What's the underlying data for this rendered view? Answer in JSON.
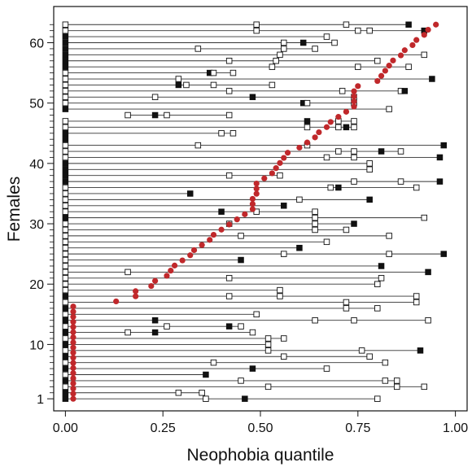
{
  "chart_data": {
    "type": "scatter",
    "title": "",
    "xlabel": "Neophobia quantile",
    "ylabel": "Females",
    "xlim": [
      -0.03,
      1.03
    ],
    "ylim": [
      -1,
      66
    ],
    "x_ticks": [
      0.0,
      0.25,
      0.5,
      0.75,
      1.0
    ],
    "x_tick_labels": [
      "0.00",
      "0.25",
      "0.50",
      "0.75",
      "1.00"
    ],
    "y_ticks": [
      1,
      10,
      20,
      30,
      40,
      50,
      60
    ],
    "y_tick_labels": [
      "1",
      "10",
      "20",
      "30",
      "40",
      "50",
      "60"
    ],
    "grid": false,
    "legend": "none",
    "colors": {
      "red_point": "#c0282b",
      "filled_square": "#111111",
      "open_square": "#ffffff",
      "line": "#333333"
    },
    "red_points": [
      0.02,
      0.02,
      0.02,
      0.02,
      0.02,
      0.02,
      0.02,
      0.02,
      0.02,
      0.02,
      0.02,
      0.02,
      0.02,
      0.02,
      0.02,
      0.02,
      0.02,
      0.02,
      0.02,
      0.13,
      0.18,
      0.18,
      0.22,
      0.23,
      0.26,
      0.27,
      0.28,
      0.3,
      0.32,
      0.33,
      0.35,
      0.37,
      0.38,
      0.4,
      0.42,
      0.44,
      0.46,
      0.48,
      0.48,
      0.48,
      0.49,
      0.49,
      0.49,
      0.51,
      0.53,
      0.54,
      0.55,
      0.56,
      0.57,
      0.6,
      0.62,
      0.64,
      0.65,
      0.67,
      0.68,
      0.7,
      0.72,
      0.74,
      0.74,
      0.74,
      0.74,
      0.75,
      0.8,
      0.81,
      0.82,
      0.83,
      0.84,
      0.86,
      0.87,
      0.89,
      0.9,
      0.92,
      0.93,
      0.95
    ],
    "females": [
      {
        "id": 1,
        "squares": [
          [
            0.0,
            "f"
          ],
          [
            0.36,
            "o"
          ],
          [
            0.46,
            "f"
          ],
          [
            0.8,
            "o"
          ]
        ]
      },
      {
        "id": 2,
        "squares": [
          [
            0.0,
            "f"
          ],
          [
            0.29,
            "o"
          ],
          [
            0.35,
            "o"
          ]
        ]
      },
      {
        "id": 3,
        "squares": [
          [
            0.0,
            "o"
          ],
          [
            0.52,
            "o"
          ],
          [
            0.85,
            "o"
          ],
          [
            0.92,
            "o"
          ]
        ]
      },
      {
        "id": 4,
        "squares": [
          [
            0.0,
            "f"
          ],
          [
            0.45,
            "o"
          ],
          [
            0.82,
            "o"
          ],
          [
            0.85,
            "o"
          ]
        ]
      },
      {
        "id": 5,
        "squares": [
          [
            0.0,
            "o"
          ],
          [
            0.36,
            "f"
          ]
        ]
      },
      {
        "id": 6,
        "squares": [
          [
            0.0,
            "f"
          ],
          [
            0.48,
            "f"
          ],
          [
            0.67,
            "o"
          ]
        ]
      },
      {
        "id": 7,
        "squares": [
          [
            0.0,
            "o"
          ],
          [
            0.38,
            "o"
          ],
          [
            0.82,
            "o"
          ]
        ]
      },
      {
        "id": 8,
        "squares": [
          [
            0.0,
            "f"
          ],
          [
            0.56,
            "o"
          ],
          [
            0.78,
            "o"
          ]
        ]
      },
      {
        "id": 9,
        "squares": [
          [
            0.0,
            "o"
          ],
          [
            0.52,
            "o"
          ],
          [
            0.76,
            "o"
          ],
          [
            0.91,
            "f"
          ]
        ]
      },
      {
        "id": 10,
        "squares": [
          [
            0.0,
            "f"
          ],
          [
            0.52,
            "o"
          ]
        ]
      },
      {
        "id": 11,
        "squares": [
          [
            0.0,
            "o"
          ],
          [
            0.52,
            "o"
          ],
          [
            0.56,
            "o"
          ]
        ]
      },
      {
        "id": 12,
        "squares": [
          [
            0.0,
            "f"
          ],
          [
            0.16,
            "o"
          ],
          [
            0.23,
            "f"
          ],
          [
            0.48,
            "o"
          ]
        ]
      },
      {
        "id": 13,
        "squares": [
          [
            0.0,
            "o"
          ],
          [
            0.26,
            "o"
          ],
          [
            0.42,
            "f"
          ],
          [
            0.45,
            "o"
          ]
        ]
      },
      {
        "id": 14,
        "squares": [
          [
            0.0,
            "f"
          ],
          [
            0.23,
            "f"
          ],
          [
            0.64,
            "o"
          ],
          [
            0.74,
            "o"
          ],
          [
            0.93,
            "o"
          ]
        ]
      },
      {
        "id": 15,
        "squares": [
          [
            0.0,
            "o"
          ],
          [
            0.49,
            "o"
          ]
        ]
      },
      {
        "id": 16,
        "squares": [
          [
            0.0,
            "f"
          ],
          [
            0.72,
            "o"
          ],
          [
            0.8,
            "o"
          ]
        ]
      },
      {
        "id": 17,
        "squares": [
          [
            0.0,
            "o"
          ],
          [
            0.72,
            "o"
          ],
          [
            0.9,
            "o"
          ]
        ]
      },
      {
        "id": 18,
        "squares": [
          [
            0.0,
            "f"
          ],
          [
            0.42,
            "o"
          ],
          [
            0.55,
            "o"
          ],
          [
            0.9,
            "o"
          ]
        ]
      },
      {
        "id": 19,
        "squares": [
          [
            0.0,
            "o"
          ],
          [
            0.55,
            "o"
          ]
        ]
      },
      {
        "id": 20,
        "squares": [
          [
            0.0,
            "o"
          ],
          [
            0.8,
            "o"
          ]
        ]
      },
      {
        "id": 21,
        "squares": [
          [
            0.0,
            "o"
          ],
          [
            0.42,
            "o"
          ],
          [
            0.81,
            "o"
          ]
        ]
      },
      {
        "id": 22,
        "squares": [
          [
            0.0,
            "o"
          ],
          [
            0.16,
            "o"
          ],
          [
            0.93,
            "f"
          ]
        ]
      },
      {
        "id": 23,
        "squares": [
          [
            0.0,
            "o"
          ],
          [
            0.81,
            "f"
          ]
        ]
      },
      {
        "id": 24,
        "squares": [
          [
            0.0,
            "o"
          ],
          [
            0.45,
            "f"
          ]
        ]
      },
      {
        "id": 25,
        "squares": [
          [
            0.0,
            "o"
          ],
          [
            0.56,
            "o"
          ],
          [
            0.83,
            "o"
          ],
          [
            0.97,
            "f"
          ]
        ]
      },
      {
        "id": 26,
        "squares": [
          [
            0.0,
            "o"
          ],
          [
            0.6,
            "f"
          ]
        ]
      },
      {
        "id": 27,
        "squares": [
          [
            0.0,
            "o"
          ],
          [
            0.67,
            "o"
          ]
        ]
      },
      {
        "id": 28,
        "squares": [
          [
            0.0,
            "o"
          ],
          [
            0.45,
            "o"
          ],
          [
            0.83,
            "o"
          ]
        ]
      },
      {
        "id": 29,
        "squares": [
          [
            0.0,
            "o"
          ],
          [
            0.64,
            "o"
          ],
          [
            0.72,
            "o"
          ]
        ]
      },
      {
        "id": 30,
        "squares": [
          [
            0.0,
            "o"
          ],
          [
            0.42,
            "o"
          ],
          [
            0.64,
            "o"
          ],
          [
            0.74,
            "f"
          ]
        ]
      },
      {
        "id": 31,
        "squares": [
          [
            0.0,
            "f"
          ],
          [
            0.64,
            "o"
          ],
          [
            0.92,
            "o"
          ]
        ]
      },
      {
        "id": 32,
        "squares": [
          [
            0.0,
            "o"
          ],
          [
            0.4,
            "f"
          ],
          [
            0.49,
            "o"
          ],
          [
            0.64,
            "o"
          ]
        ]
      },
      {
        "id": 33,
        "squares": [
          [
            0.0,
            "o"
          ],
          [
            0.56,
            "f"
          ]
        ]
      },
      {
        "id": 34,
        "squares": [
          [
            0.0,
            "o"
          ],
          [
            0.6,
            "o"
          ],
          [
            0.78,
            "f"
          ]
        ]
      },
      {
        "id": 35,
        "squares": [
          [
            0.0,
            "o"
          ],
          [
            0.32,
            "f"
          ]
        ]
      },
      {
        "id": 36,
        "squares": [
          [
            0.0,
            "o"
          ],
          [
            0.68,
            "o"
          ],
          [
            0.7,
            "f"
          ],
          [
            0.9,
            "o"
          ]
        ]
      },
      {
        "id": 37,
        "squares": [
          [
            0.0,
            "f"
          ],
          [
            0.74,
            "o"
          ],
          [
            0.86,
            "o"
          ],
          [
            0.96,
            "f"
          ]
        ]
      },
      {
        "id": 38,
        "squares": [
          [
            0.0,
            "f"
          ],
          [
            0.42,
            "o"
          ],
          [
            0.55,
            "o"
          ]
        ]
      },
      {
        "id": 39,
        "squares": [
          [
            0.0,
            "f"
          ],
          [
            0.78,
            "o"
          ]
        ]
      },
      {
        "id": 40,
        "squares": [
          [
            0.0,
            "f"
          ],
          [
            0.78,
            "o"
          ]
        ]
      },
      {
        "id": 41,
        "squares": [
          [
            0.0,
            "o"
          ],
          [
            0.67,
            "o"
          ],
          [
            0.74,
            "o"
          ],
          [
            0.96,
            "f"
          ]
        ]
      },
      {
        "id": 42,
        "squares": [
          [
            0.0,
            "o"
          ],
          [
            0.7,
            "o"
          ],
          [
            0.74,
            "o"
          ],
          [
            0.81,
            "f"
          ],
          [
            0.86,
            "o"
          ]
        ]
      },
      {
        "id": 43,
        "squares": [
          [
            0.0,
            "o"
          ],
          [
            0.34,
            "o"
          ],
          [
            0.62,
            "o"
          ],
          [
            0.97,
            "f"
          ]
        ]
      },
      {
        "id": 44,
        "squares": [
          [
            0.0,
            "f"
          ]
        ]
      },
      {
        "id": 45,
        "squares": [
          [
            0.0,
            "f"
          ],
          [
            0.4,
            "o"
          ],
          [
            0.43,
            "o"
          ]
        ]
      },
      {
        "id": 46,
        "squares": [
          [
            0.0,
            "o"
          ],
          [
            0.62,
            "o"
          ],
          [
            0.7,
            "o"
          ],
          [
            0.72,
            "f"
          ],
          [
            0.74,
            "o"
          ]
        ]
      },
      {
        "id": 47,
        "squares": [
          [
            0.0,
            "o"
          ],
          [
            0.62,
            "f"
          ],
          [
            0.7,
            "o"
          ],
          [
            0.74,
            "o"
          ]
        ]
      },
      {
        "id": 48,
        "squares": [
          [
            0.16,
            "o"
          ],
          [
            0.23,
            "f"
          ],
          [
            0.26,
            "o"
          ],
          [
            0.42,
            "o"
          ]
        ]
      },
      {
        "id": 49,
        "squares": [
          [
            0.0,
            "f"
          ],
          [
            0.83,
            "o"
          ]
        ]
      },
      {
        "id": 50,
        "squares": [
          [
            0.0,
            "o"
          ],
          [
            0.61,
            "f"
          ],
          [
            0.62,
            "o"
          ],
          [
            0.74,
            "o"
          ]
        ]
      },
      {
        "id": 51,
        "squares": [
          [
            0.0,
            "o"
          ],
          [
            0.23,
            "o"
          ],
          [
            0.48,
            "f"
          ],
          [
            0.74,
            "o"
          ]
        ]
      },
      {
        "id": 52,
        "squares": [
          [
            0.0,
            "o"
          ],
          [
            0.42,
            "o"
          ],
          [
            0.71,
            "o"
          ],
          [
            0.86,
            "o"
          ],
          [
            0.87,
            "f"
          ]
        ]
      },
      {
        "id": 53,
        "squares": [
          [
            0.0,
            "o"
          ],
          [
            0.29,
            "f"
          ],
          [
            0.31,
            "o"
          ],
          [
            0.38,
            "o"
          ],
          [
            0.53,
            "o"
          ]
        ]
      },
      {
        "id": 54,
        "squares": [
          [
            0.0,
            "o"
          ],
          [
            0.29,
            "o"
          ],
          [
            0.94,
            "f"
          ]
        ]
      },
      {
        "id": 55,
        "squares": [
          [
            0.0,
            "o"
          ],
          [
            0.37,
            "f"
          ],
          [
            0.38,
            "o"
          ],
          [
            0.43,
            "o"
          ]
        ]
      },
      {
        "id": 56,
        "squares": [
          [
            0.0,
            "f"
          ],
          [
            0.53,
            "o"
          ],
          [
            0.75,
            "o"
          ],
          [
            0.88,
            "o"
          ]
        ]
      },
      {
        "id": 57,
        "squares": [
          [
            0.0,
            "f"
          ],
          [
            0.42,
            "o"
          ],
          [
            0.54,
            "o"
          ],
          [
            0.8,
            "o"
          ]
        ]
      },
      {
        "id": 58,
        "squares": [
          [
            0.0,
            "f"
          ],
          [
            0.55,
            "o"
          ],
          [
            0.92,
            "o"
          ]
        ]
      },
      {
        "id": 59,
        "squares": [
          [
            0.0,
            "f"
          ],
          [
            0.34,
            "o"
          ],
          [
            0.56,
            "o"
          ],
          [
            0.64,
            "o"
          ]
        ]
      },
      {
        "id": 60,
        "squares": [
          [
            0.0,
            "f"
          ],
          [
            0.56,
            "o"
          ],
          [
            0.61,
            "f"
          ],
          [
            0.69,
            "o"
          ]
        ]
      },
      {
        "id": 61,
        "squares": [
          [
            0.0,
            "f"
          ],
          [
            0.67,
            "o"
          ]
        ]
      },
      {
        "id": 62,
        "squares": [
          [
            0.0,
            "o"
          ],
          [
            0.49,
            "o"
          ],
          [
            0.75,
            "o"
          ],
          [
            0.78,
            "o"
          ],
          [
            0.92,
            "f"
          ]
        ]
      },
      {
        "id": 63,
        "squares": [
          [
            0.0,
            "o"
          ],
          [
            0.49,
            "o"
          ],
          [
            0.72,
            "o"
          ],
          [
            0.88,
            "f"
          ]
        ]
      }
    ]
  }
}
